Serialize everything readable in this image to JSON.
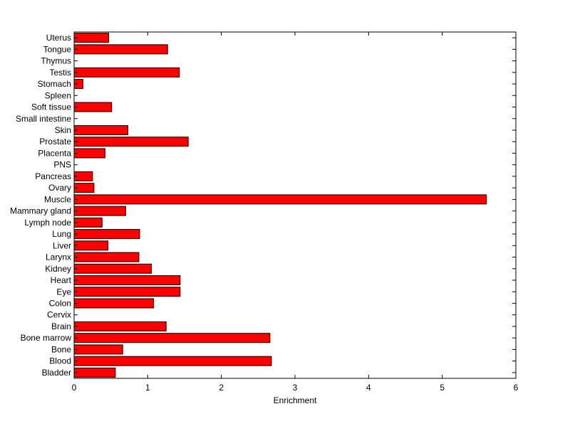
{
  "chart_data": {
    "type": "bar",
    "orientation": "horizontal",
    "categories": [
      "Bladder",
      "Blood",
      "Bone",
      "Bone marrow",
      "Brain",
      "Cervix",
      "Colon",
      "Eye",
      "Heart",
      "Kidney",
      "Larynx",
      "Liver",
      "Lung",
      "Lymph node",
      "Mammary gland",
      "Muscle",
      "Ovary",
      "Pancreas",
      "PNS",
      "Placenta",
      "Prostate",
      "Skin",
      "Small intestine",
      "Soft tissue",
      "Spleen",
      "Stomach",
      "Testis",
      "Thymus",
      "Tongue",
      "Uterus"
    ],
    "values": [
      0.56,
      2.68,
      0.66,
      2.66,
      1.25,
      0,
      1.08,
      1.44,
      1.44,
      1.05,
      0.88,
      0.46,
      0.89,
      0.38,
      0.7,
      5.6,
      0.27,
      0.25,
      0,
      0.42,
      1.55,
      0.73,
      0,
      0.51,
      0,
      0.12,
      1.43,
      0,
      1.27,
      0.47
    ],
    "xlabel": "Enrichment",
    "ylabel": "",
    "title": "",
    "xlim": [
      0,
      6
    ],
    "xticks": [
      "0",
      "1",
      "2",
      "3",
      "4",
      "5",
      "6"
    ],
    "grid": false,
    "bar_color": "#ff0000",
    "edge_color": "#000000"
  }
}
